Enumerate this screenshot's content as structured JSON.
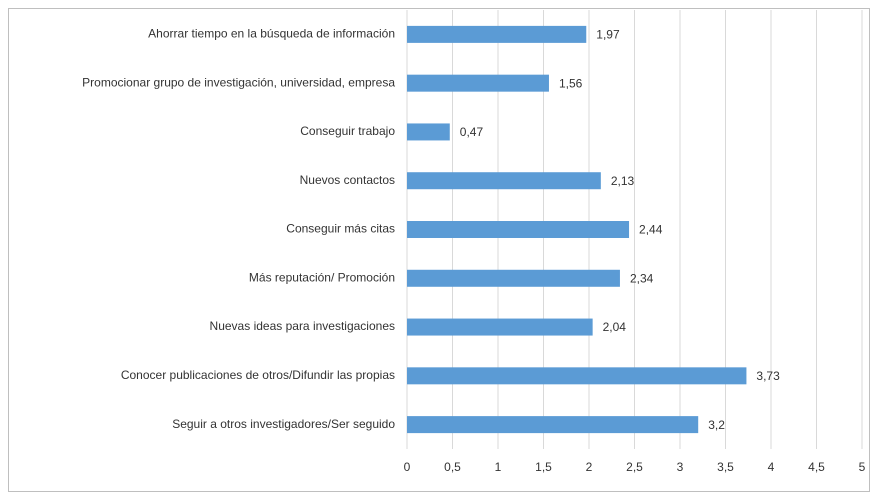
{
  "chart_data": {
    "type": "barh",
    "categories": [
      "Ahorrar tiempo  en la búsqueda de información",
      "Promocionar grupo de investigación, universidad, empresa",
      "Conseguir trabajo",
      "Nuevos contactos",
      "Conseguir más citas",
      "Más reputación/ Promoción",
      "Nuevas ideas para investigaciones",
      "Conocer publicaciones de otros/Difundir las propias",
      "Seguir a otros investigadores/Ser seguido"
    ],
    "values": [
      1.97,
      1.56,
      0.47,
      2.13,
      2.44,
      2.34,
      2.04,
      3.73,
      3.2
    ],
    "value_labels": [
      "1,97",
      "1,56",
      "0,47",
      "2,13",
      "2,44",
      "2,34",
      "2,04",
      "3,73",
      "3,2"
    ],
    "color": "#5b9bd5",
    "xlim": [
      0,
      5
    ],
    "xticks": [
      0,
      {
        "value": 0.5,
        "label": "0,5"
      },
      1,
      {
        "value": 1.5,
        "label": "1,5"
      },
      2,
      {
        "value": 2.5,
        "label": "2,5"
      },
      3,
      {
        "value": 3.5,
        "label": "3,5"
      },
      4,
      {
        "value": 4.5,
        "label": "4,5"
      },
      5
    ],
    "grid": true
  }
}
